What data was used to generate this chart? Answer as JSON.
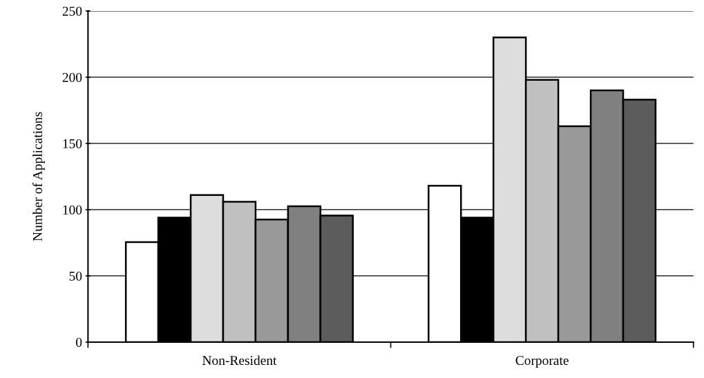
{
  "chart_data": {
    "type": "bar",
    "ylabel": "Number of Applications",
    "categories": [
      "Non-Resident",
      "Corporate"
    ],
    "series": [
      {
        "color": "#ffffff",
        "values": [
          75.5,
          118
        ]
      },
      {
        "color": "#000000",
        "values": [
          94,
          94
        ]
      },
      {
        "color": "#dddddd",
        "values": [
          111,
          230
        ]
      },
      {
        "color": "#c0c0c0",
        "values": [
          106,
          198
        ]
      },
      {
        "color": "#999999",
        "values": [
          92.5,
          163
        ]
      },
      {
        "color": "#808080",
        "values": [
          102.5,
          190
        ]
      },
      {
        "color": "#5c5c5c",
        "values": [
          95.5,
          183
        ]
      }
    ],
    "ylim": [
      0,
      250
    ],
    "yticks": [
      0,
      50,
      100,
      150,
      200,
      250
    ],
    "grid": "y"
  }
}
